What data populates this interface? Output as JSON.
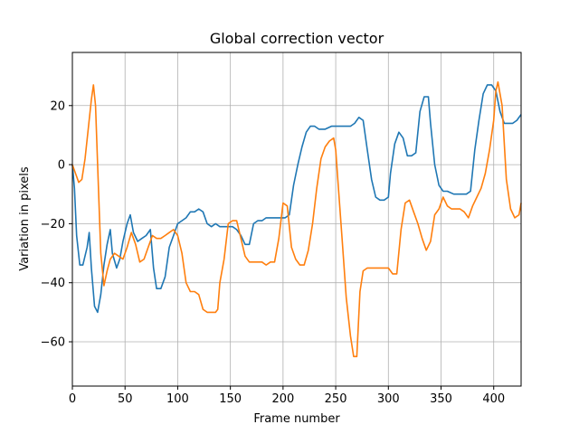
{
  "chart_data": {
    "type": "line",
    "title": "Global correction vector",
    "xlabel": "Frame number",
    "ylabel": "Variation in pixels",
    "xlim": [
      0,
      426
    ],
    "ylim": [
      -75,
      38
    ],
    "xticks": [
      0,
      50,
      100,
      150,
      200,
      250,
      300,
      350,
      400
    ],
    "yticks": [
      -60,
      -40,
      -20,
      0,
      20
    ],
    "grid": true,
    "colors": {
      "series_1": "#1f77b4",
      "series_2": "#ff7f0e",
      "grid": "#b0b0b0"
    },
    "series": [
      {
        "color": "#1f77b4",
        "x": [
          0,
          2,
          4,
          7,
          10,
          14,
          16,
          18,
          21,
          24,
          27,
          30,
          33,
          36,
          38,
          42,
          45,
          48,
          52,
          55,
          58,
          62,
          66,
          70,
          74,
          77,
          80,
          84,
          88,
          92,
          96,
          100,
          104,
          108,
          112,
          116,
          120,
          124,
          128,
          132,
          136,
          140,
          144,
          148,
          152,
          156,
          160,
          164,
          168,
          172,
          176,
          180,
          184,
          190,
          196,
          202,
          206,
          210,
          214,
          218,
          222,
          226,
          230,
          234,
          240,
          246,
          252,
          258,
          264,
          268,
          272,
          276,
          280,
          284,
          288,
          292,
          296,
          300,
          302,
          306,
          310,
          314,
          318,
          322,
          326,
          330,
          334,
          338,
          340,
          344,
          348,
          352,
          356,
          362,
          368,
          374,
          378,
          382,
          386,
          390,
          394,
          398,
          402,
          406,
          410,
          414,
          418,
          422,
          426
        ],
        "y": [
          0,
          -8,
          -24,
          -34,
          -34,
          -28,
          -23,
          -35,
          -48,
          -50,
          -44,
          -34,
          -27,
          -22,
          -30,
          -35,
          -32,
          -26,
          -20,
          -17,
          -23,
          -26,
          -25,
          -24,
          -22,
          -35,
          -42,
          -42,
          -38,
          -28,
          -24,
          -20,
          -19,
          -18,
          -16,
          -16,
          -15,
          -16,
          -20,
          -21,
          -20,
          -21,
          -21,
          -21,
          -21,
          -22,
          -24,
          -27,
          -27,
          -20,
          -19,
          -19,
          -18,
          -18,
          -18,
          -18,
          -17,
          -7,
          0,
          6,
          11,
          13,
          13,
          12,
          12,
          13,
          13,
          13,
          13,
          14,
          16,
          15,
          5,
          -5,
          -11,
          -12,
          -12,
          -11,
          -3,
          7,
          11,
          9,
          3,
          3,
          4,
          18,
          23,
          23,
          14,
          0,
          -7,
          -9,
          -9,
          -10,
          -10,
          -10,
          -9,
          5,
          15,
          24,
          27,
          27,
          25,
          18,
          14,
          14,
          14,
          15,
          17
        ]
      },
      {
        "color": "#ff7f0e",
        "x": [
          0,
          3,
          6,
          9,
          12,
          15,
          18,
          20,
          22,
          24,
          27,
          30,
          33,
          36,
          40,
          44,
          48,
          52,
          56,
          60,
          64,
          68,
          72,
          76,
          80,
          84,
          88,
          92,
          96,
          100,
          104,
          108,
          112,
          116,
          120,
          124,
          128,
          132,
          136,
          138,
          140,
          144,
          148,
          152,
          156,
          160,
          164,
          168,
          172,
          176,
          180,
          184,
          188,
          192,
          196,
          200,
          204,
          208,
          212,
          216,
          220,
          224,
          228,
          232,
          236,
          240,
          244,
          248,
          250,
          252,
          256,
          260,
          264,
          267,
          270,
          273,
          276,
          280,
          284,
          288,
          292,
          296,
          300,
          304,
          308,
          312,
          316,
          320,
          324,
          328,
          332,
          336,
          340,
          344,
          348,
          352,
          356,
          360,
          364,
          368,
          372,
          376,
          380,
          384,
          388,
          392,
          396,
          400,
          402,
          404,
          408,
          412,
          416,
          420,
          424,
          426
        ],
        "y": [
          0,
          -3,
          -6,
          -5,
          2,
          12,
          22,
          27,
          20,
          0,
          -30,
          -41,
          -36,
          -32,
          -30,
          -31,
          -32,
          -28,
          -23,
          -27,
          -33,
          -32,
          -28,
          -24,
          -25,
          -25,
          -24,
          -23,
          -22,
          -24,
          -30,
          -40,
          -43,
          -43,
          -44,
          -49,
          -50,
          -50,
          -50,
          -49,
          -40,
          -32,
          -20,
          -19,
          -19,
          -25,
          -31,
          -33,
          -33,
          -33,
          -33,
          -34,
          -33,
          -33,
          -25,
          -13,
          -14,
          -28,
          -32,
          -34,
          -34,
          -29,
          -20,
          -8,
          2,
          6,
          8,
          9,
          5,
          -5,
          -25,
          -45,
          -58,
          -65,
          -65,
          -43,
          -36,
          -35,
          -35,
          -35,
          -35,
          -35,
          -35,
          -37,
          -37,
          -22,
          -13,
          -12,
          -16,
          -20,
          -25,
          -29,
          -26,
          -17,
          -15,
          -11,
          -14,
          -15,
          -15,
          -15,
          -16,
          -18,
          -14,
          -11,
          -8,
          -3,
          5,
          15,
          25,
          28,
          20,
          -5,
          -15,
          -18,
          -17,
          -13
        ],
        "marks_per_series": 2
      }
    ]
  }
}
